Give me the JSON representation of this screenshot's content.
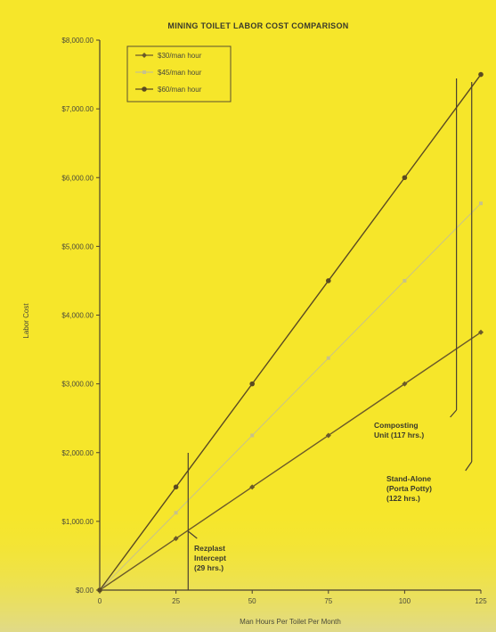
{
  "chart_data": {
    "type": "line",
    "title": "MINING TOILET LABOR COST COMPARISON",
    "xlabel": "Man Hours Per Toilet Per Month",
    "ylabel": "Labor Cost",
    "x": [
      0,
      25,
      50,
      75,
      100,
      125
    ],
    "x_ticks": [
      "0",
      "25",
      "50",
      "75",
      "100",
      "125"
    ],
    "y_ticks": [
      "$0.00",
      "$1,000.00",
      "$2,000.00",
      "$3,000.00",
      "$4,000.00",
      "$5,000.00",
      "$6,000.00",
      "$7,000.00",
      "$8,000.00"
    ],
    "xlim": [
      0,
      125
    ],
    "ylim": [
      0,
      8000
    ],
    "legend_position": "top-left",
    "series": [
      {
        "name": "$30/man hour",
        "values": [
          0,
          750,
          1500,
          2250,
          3000,
          3750
        ],
        "color": "#6b5a2a",
        "marker": "diamond"
      },
      {
        "name": "$45/man hour",
        "values": [
          0,
          1125,
          2250,
          3375,
          4500,
          5625
        ],
        "color": "#c8c28a",
        "marker": "square"
      },
      {
        "name": "$60/man hour",
        "values": [
          0,
          1500,
          3000,
          4500,
          6000,
          7500
        ],
        "color": "#5a4a22",
        "marker": "circle"
      }
    ],
    "annotations": [
      {
        "lines": [
          "Rezplast",
          "Intercept",
          "(29 hrs.)"
        ],
        "x": 29
      },
      {
        "lines": [
          "Composting",
          "Unit (117 hrs.)"
        ],
        "x": 117
      },
      {
        "lines": [
          "Stand-Alone",
          "(Porta Potty)",
          "(122 hrs.)"
        ],
        "x": 122
      }
    ]
  }
}
